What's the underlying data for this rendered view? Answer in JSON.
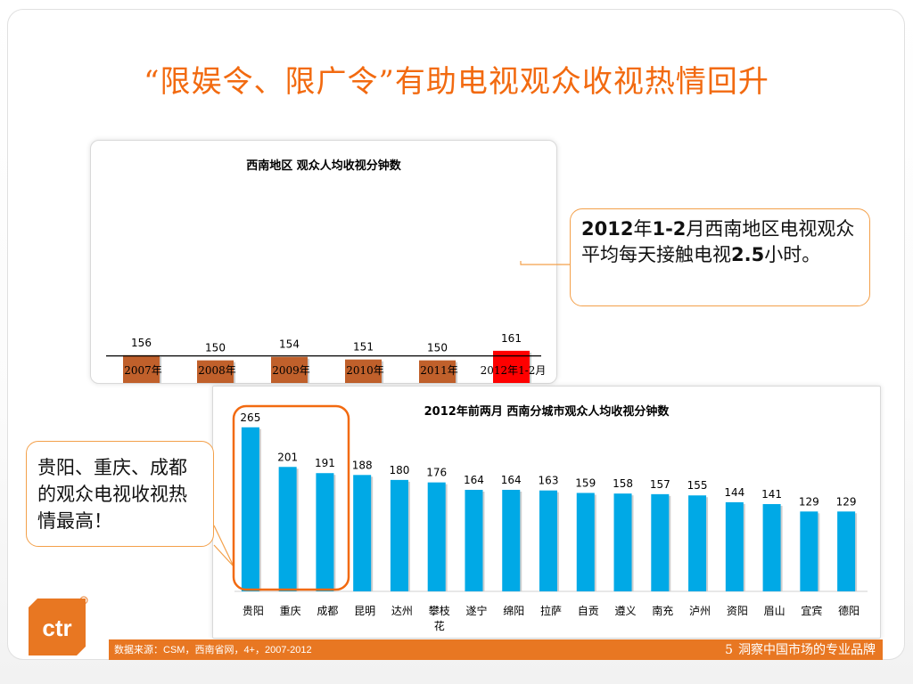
{
  "slide": {
    "title": "“限娱令、限广令”有助电视观众收视热情回升",
    "callout_top": {
      "year": "2012",
      "y_suffix": "年",
      "months": "1-2",
      "text1": "月西南地区电视观众平均每天接触电视",
      "num": "2.5",
      "text2": "小时。"
    },
    "callout_left": "贵阳、重庆、成都的观众电视收视热情最高！",
    "footer": {
      "source": "数据来源：CSM，西南省网，4+，2007-2012",
      "page": "5",
      "brand": "洞察中国市场的专业品牌"
    },
    "logo_text": "ctr"
  },
  "chart_data": [
    {
      "type": "bar",
      "title": "西南地区 观众人均收视分钟数",
      "categories": [
        "2007年",
        "2008年",
        "2009年",
        "2010年",
        "2011年",
        "2012年1-2月"
      ],
      "values": [
        156,
        150,
        154,
        151,
        150,
        161
      ],
      "colors": [
        "#c0602b",
        "#c0602b",
        "#c0602b",
        "#c0602b",
        "#c0602b",
        "#ff0000"
      ],
      "reference_line": 150,
      "ylim": [
        0,
        165
      ]
    },
    {
      "type": "bar",
      "title": "2012年前两月 西南分城市观众人均收视分钟数",
      "categories": [
        "贵阳",
        "重庆",
        "成都",
        "昆明",
        "达州",
        "攀枝花",
        "遂宁",
        "绵阳",
        "拉萨",
        "自贡",
        "遵义",
        "南充",
        "泸州",
        "资阳",
        "眉山",
        "宜宾",
        "德阳"
      ],
      "values": [
        265,
        201,
        191,
        188,
        180,
        176,
        164,
        164,
        163,
        159,
        158,
        157,
        155,
        144,
        141,
        129,
        129
      ],
      "color": "#00a9e6",
      "ylim": [
        0,
        290
      ]
    }
  ],
  "colors": {
    "accent": "#f26a10",
    "bar_orange": "#c0602b",
    "bar_red": "#ff0000",
    "bar_blue": "#00a9e6",
    "footer": "#e87722"
  }
}
